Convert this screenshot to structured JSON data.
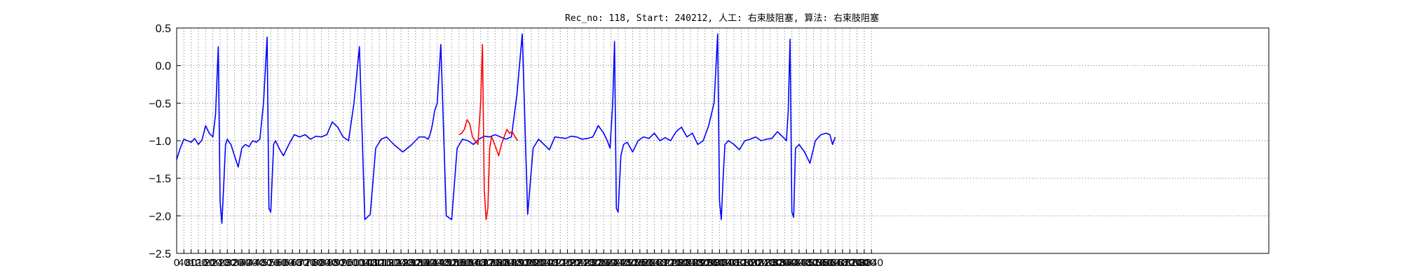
{
  "chart_data": {
    "type": "line",
    "title": "Rec_no: 118, Start: 240212, 人工: 右束肢阻塞, 算法: 右束肢阻塞",
    "xlabel": "",
    "ylabel": "",
    "ylim": [
      -2.5,
      0.5
    ],
    "yticks": [
      "−2.5",
      "−2.0",
      "−1.5",
      "−1.0",
      "−0.5",
      "0.0",
      "0.5"
    ],
    "ytick_values": [
      -2.5,
      -2.0,
      -1.5,
      -1.0,
      -0.5,
      0.0,
      0.5
    ],
    "xlim": [
      0,
      3850
    ],
    "xticks": [
      0,
      40,
      80,
      120,
      160,
      200,
      240,
      280,
      320,
      360,
      400,
      440,
      480,
      520,
      560,
      600,
      640,
      680,
      720,
      760,
      800,
      840,
      880,
      920,
      960,
      1000,
      1040,
      1080,
      1120,
      1160,
      1200,
      1240,
      1280,
      1320,
      1360,
      1400,
      1440,
      1480,
      1520,
      1560,
      1600,
      1640,
      1680,
      1720,
      1760,
      1800,
      1840,
      1880,
      1920,
      1960,
      2000,
      2040,
      2080,
      2120,
      2160,
      2200,
      2240,
      2280,
      2320,
      2360,
      2400,
      2440,
      2480,
      2520,
      2560,
      2600,
      2640,
      2680,
      2720,
      2760,
      2800,
      2840,
      2880,
      2920,
      2960,
      3000,
      3040,
      3080,
      3120,
      3160,
      3200,
      3240,
      3280,
      3320,
      3360,
      3400,
      3440,
      3480,
      3520,
      3560,
      3600,
      3640,
      3680,
      3720,
      3760,
      3800,
      3840
    ],
    "grid": true,
    "legend": "none",
    "series": [
      {
        "color": "#0000ff",
        "x": [
          0,
          20,
          40,
          60,
          80,
          100,
          120,
          140,
          160,
          180,
          200,
          215,
          230,
          240,
          250,
          260,
          270,
          280,
          290,
          300,
          320,
          340,
          360,
          380,
          400,
          420,
          440,
          460,
          480,
          500,
          510,
          520,
          528,
          536,
          546,
          556,
          570,
          590,
          620,
          650,
          680,
          710,
          740,
          770,
          800,
          830,
          860,
          890,
          920,
          950,
          980,
          1010,
          1040,
          1070,
          1100,
          1130,
          1160,
          1200,
          1250,
          1300,
          1340,
          1370,
          1390,
          1400,
          1408,
          1416,
          1426,
          1440,
          1460,
          1490,
          1520,
          1550,
          1580,
          1610,
          1640,
          1670,
          1700,
          1730,
          1760,
          1790,
          1820,
          1850,
          1880,
          1910,
          1940,
          1970,
          2000,
          2030,
          2060,
          2090,
          2120,
          2150,
          2180,
          2210,
          2240,
          2270,
          2300,
          2330,
          2360,
          2380,
          2395,
          2410,
          2420,
          2430,
          2440,
          2455,
          2470,
          2490,
          2520,
          2550
        ],
        "y": [
          -1.25,
          -1.1,
          -0.98,
          -1.0,
          -1.02,
          -0.97,
          -1.05,
          -0.99,
          -0.8,
          -0.9,
          -0.95,
          -0.65,
          0.25,
          -1.8,
          -2.1,
          -1.6,
          -1.05,
          -0.98,
          -1.02,
          -1.05,
          -1.2,
          -1.35,
          -1.1,
          -1.05,
          -1.08,
          -1.0,
          -1.02,
          -0.98,
          -0.5,
          0.38,
          -1.9,
          -1.95,
          -1.5,
          -1.05,
          -1.0,
          -1.05,
          -1.12,
          -1.2,
          -1.05,
          -0.92,
          -0.95,
          -0.92,
          -0.98,
          -0.94,
          -0.95,
          -0.92,
          -0.75,
          -0.82,
          -0.95,
          -1.0,
          -0.5,
          0.25,
          -2.05,
          -1.98,
          -1.1,
          -0.98,
          -0.95,
          -1.05,
          -1.15,
          -1.05,
          -0.95,
          -0.95,
          -0.98,
          -0.92,
          -0.85,
          -0.75,
          -0.6,
          -0.5,
          0.28,
          -2.0,
          -2.05,
          -1.1,
          -0.98,
          -1.0,
          -1.05,
          -0.98,
          -0.94,
          -0.95,
          -0.92,
          -0.95,
          -0.98,
          -0.95,
          -0.4,
          0.42,
          -1.98,
          -1.1,
          -0.98,
          -1.05,
          -1.12,
          -0.95,
          -0.96,
          -0.97,
          -0.94,
          -0.95,
          -0.98,
          -0.97,
          -0.95,
          -0.8,
          -0.9,
          -1.0,
          -1.1,
          -0.5,
          0.32,
          -1.9,
          -1.95,
          -1.2,
          -1.05,
          -1.02,
          -1.15,
          -1.0
        ]
      },
      {
        "color": "#0000ff",
        "x": [
          2550,
          2580,
          2610,
          2640,
          2670,
          2700,
          2730,
          2760,
          2790,
          2820,
          2850,
          2880,
          2910,
          2940,
          2970,
          2990,
          3000,
          3010,
          3020,
          3030,
          3050,
          3080,
          3110,
          3140,
          3170,
          3200,
          3230,
          3260,
          3290,
          3320,
          3350,
          3370,
          3380,
          3390,
          3400,
          3410,
          3420,
          3440,
          3470,
          3500,
          3530,
          3560,
          3590,
          3610,
          3625,
          3640
        ],
        "y": [
          -1.0,
          -0.95,
          -0.97,
          -0.9,
          -1.0,
          -0.96,
          -1.0,
          -0.88,
          -0.82,
          -0.95,
          -0.9,
          -1.05,
          -1.0,
          -0.8,
          -0.5,
          0.42,
          -1.8,
          -2.05,
          -1.5,
          -1.05,
          -1.0,
          -1.05,
          -1.12,
          -1.0,
          -0.98,
          -0.95,
          -1.0,
          -0.98,
          -0.97,
          -0.88,
          -0.95,
          -1.0,
          -0.6,
          0.35,
          -1.95,
          -2.02,
          -1.1,
          -1.05,
          -1.15,
          -1.3,
          -1.0,
          -0.92,
          -0.9,
          -0.92,
          -1.05,
          -0.95
        ]
      },
      {
        "color": "#ff0000",
        "x": [
          1560,
          1575,
          1590,
          1605,
          1620,
          1635,
          1650,
          1665,
          1680,
          1690,
          1700,
          1710,
          1720,
          1730,
          1740,
          1750,
          1765,
          1780,
          1795,
          1810,
          1825,
          1840,
          1855,
          1870,
          1885
        ],
        "y": [
          -0.92,
          -0.9,
          -0.85,
          -0.72,
          -0.78,
          -0.95,
          -1.0,
          -1.05,
          -0.5,
          0.28,
          -1.65,
          -2.05,
          -1.9,
          -1.1,
          -0.95,
          -1.0,
          -1.1,
          -1.2,
          -1.05,
          -0.95,
          -0.85,
          -0.9,
          -0.88,
          -0.95,
          -1.0
        ]
      }
    ]
  }
}
